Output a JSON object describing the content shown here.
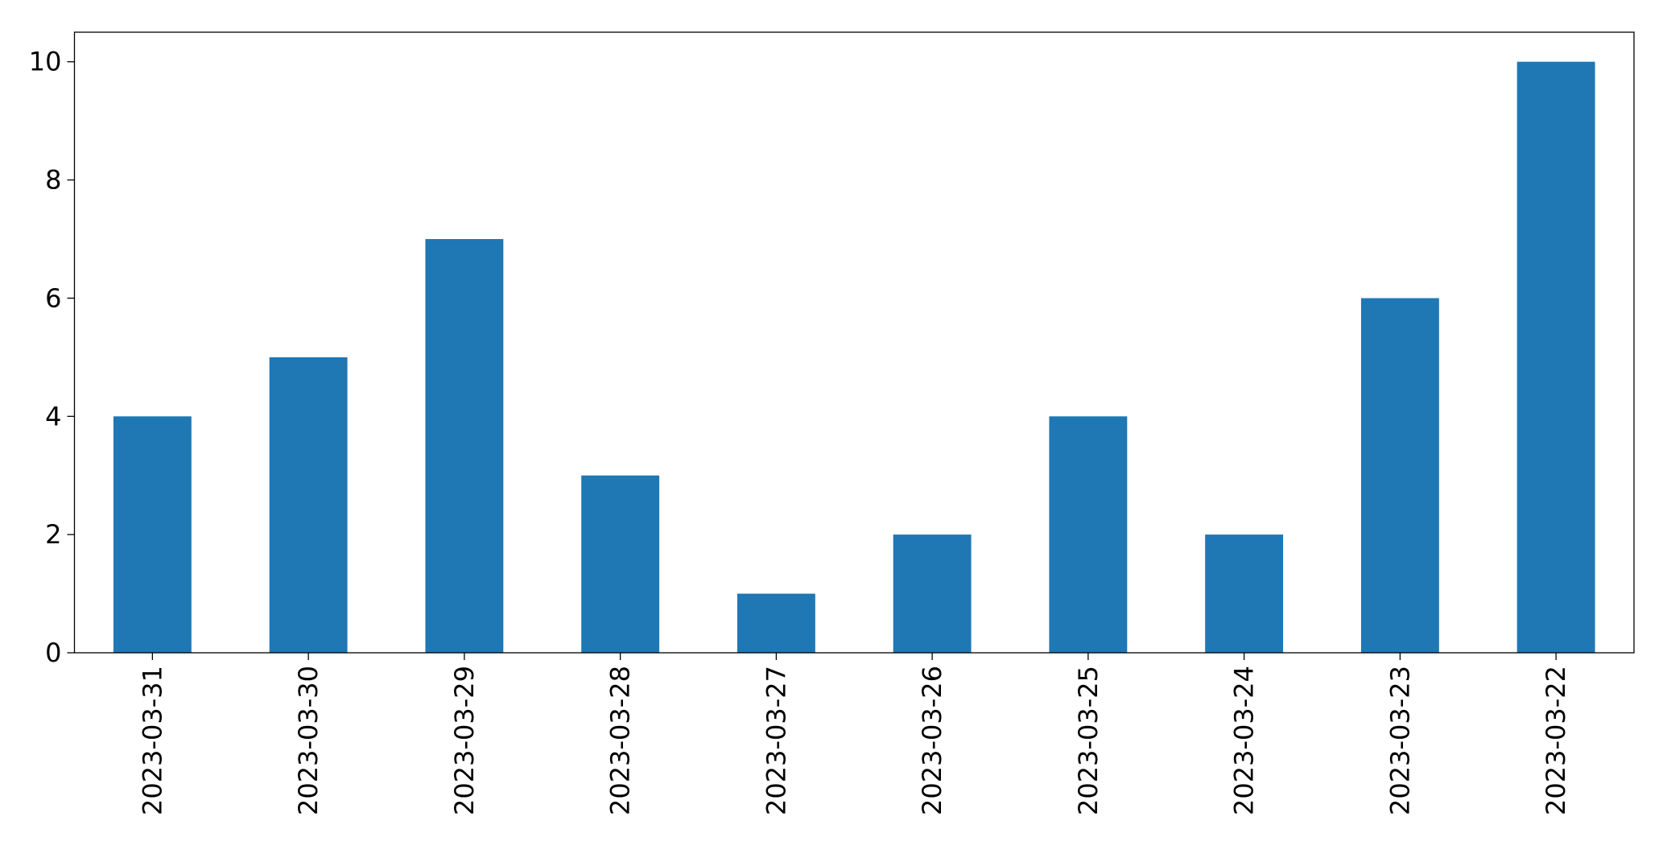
{
  "chart_data": {
    "type": "bar",
    "categories": [
      "2023-03-31",
      "2023-03-30",
      "2023-03-29",
      "2023-03-28",
      "2023-03-27",
      "2023-03-26",
      "2023-03-25",
      "2023-03-24",
      "2023-03-23",
      "2023-03-22"
    ],
    "values": [
      4,
      5,
      7,
      3,
      1,
      2,
      4,
      2,
      6,
      10
    ],
    "color": "#1f77b4",
    "ylim": [
      0,
      10.5
    ],
    "yticks": [
      0,
      2,
      4,
      6,
      8,
      10
    ],
    "grid": false
  }
}
